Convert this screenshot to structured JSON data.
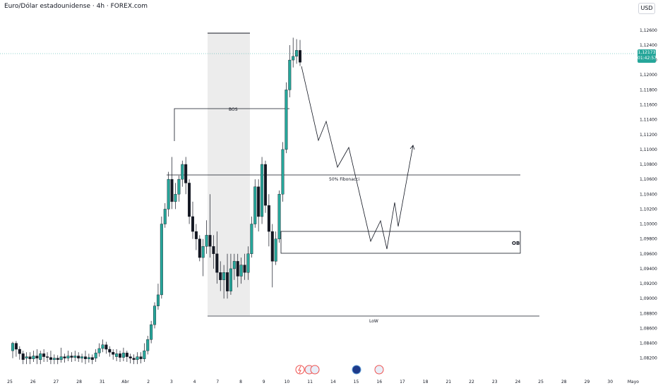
{
  "header": {
    "title": "Euro/Dólar estadounidense · 4h · FOREX.com",
    "currency": "USD"
  },
  "last_price": {
    "value": "1,12173",
    "countdown": "01:42:57"
  },
  "colors": {
    "up": "#26a69a",
    "down": "#131722",
    "price_line": "#26a69a",
    "shade": "#d9d9d9"
  },
  "chart_data": {
    "type": "candlestick",
    "y_ticks": [
      "1,12600",
      "1,12400",
      "1,12200",
      "1,12000",
      "1,11800",
      "1,11600",
      "1,11400",
      "1,11200",
      "1,11000",
      "1,10800",
      "1,10600",
      "1,10400",
      "1,10200",
      "1,10000",
      "1,09800",
      "1,09600",
      "1,09400",
      "1,09200",
      "1,09000",
      "1,08800",
      "1,08600",
      "1,08400",
      "1,08200"
    ],
    "ylim": [
      1.0815,
      1.1275
    ],
    "x_ticks": [
      "25",
      "26",
      "27",
      "28",
      "31",
      "Abr",
      "2",
      "3",
      "4",
      "7",
      "8",
      "9",
      "10",
      "11",
      "14",
      "15",
      "16",
      "17",
      "18",
      "21",
      "22",
      "23",
      "24",
      "25",
      "28",
      "29",
      "30",
      "Mayo"
    ],
    "candles": [
      [
        1.083,
        1.084,
        1.082,
        1.0842
      ],
      [
        1.084,
        1.0832,
        1.0822,
        1.0843
      ],
      [
        1.0832,
        1.0826,
        1.0818,
        1.0836
      ],
      [
        1.0826,
        1.0818,
        1.0812,
        1.083
      ],
      [
        1.082,
        1.0822,
        1.0812,
        1.0828
      ],
      [
        1.0822,
        1.0819,
        1.0812,
        1.0828
      ],
      [
        1.0819,
        1.0823,
        1.0815,
        1.083
      ],
      [
        1.0823,
        1.082,
        1.0812,
        1.0832
      ],
      [
        1.0818,
        1.0826,
        1.0812,
        1.083
      ],
      [
        1.0826,
        1.0822,
        1.0815,
        1.0832
      ],
      [
        1.0822,
        1.0821,
        1.0815,
        1.0828
      ],
      [
        1.0821,
        1.0818,
        1.0812,
        1.083
      ],
      [
        1.0818,
        1.082,
        1.0812,
        1.0825
      ],
      [
        1.082,
        1.0818,
        1.0812,
        1.0824
      ],
      [
        1.0818,
        1.0822,
        1.0814,
        1.0834
      ],
      [
        1.0822,
        1.082,
        1.0814,
        1.0826
      ],
      [
        1.082,
        1.0823,
        1.0816,
        1.083
      ],
      [
        1.0823,
        1.0821,
        1.0815,
        1.0828
      ],
      [
        1.0821,
        1.0823,
        1.0816,
        1.083
      ],
      [
        1.0823,
        1.082,
        1.0815,
        1.0828
      ],
      [
        1.082,
        1.0822,
        1.0814,
        1.0826
      ],
      [
        1.0822,
        1.0819,
        1.0812,
        1.083
      ],
      [
        1.0819,
        1.0821,
        1.0814,
        1.0826
      ],
      [
        1.0821,
        1.0818,
        1.0812,
        1.0825
      ],
      [
        1.082,
        1.0827,
        1.0815,
        1.0832
      ],
      [
        1.0827,
        1.0833,
        1.0822,
        1.084
      ],
      [
        1.0833,
        1.0838,
        1.0828,
        1.0845
      ],
      [
        1.0838,
        1.0832,
        1.0826,
        1.0842
      ],
      [
        1.0832,
        1.0828,
        1.0822,
        1.0836
      ],
      [
        1.0828,
        1.0825,
        1.0818,
        1.0832
      ],
      [
        1.0822,
        1.0826,
        1.0816,
        1.0832
      ],
      [
        1.0826,
        1.0821,
        1.0815,
        1.083
      ],
      [
        1.0821,
        1.0827,
        1.0816,
        1.0834
      ],
      [
        1.0827,
        1.0822,
        1.0815,
        1.083
      ],
      [
        1.0822,
        1.082,
        1.0813,
        1.0826
      ],
      [
        1.082,
        1.0818,
        1.0812,
        1.0825
      ],
      [
        1.0818,
        1.0822,
        1.0812,
        1.0828
      ],
      [
        1.0822,
        1.0819,
        1.0813,
        1.0828
      ],
      [
        1.0819,
        1.083,
        1.0815,
        1.084
      ],
      [
        1.083,
        1.0845,
        1.0825,
        1.085
      ],
      [
        1.0845,
        1.0865,
        1.084,
        1.087
      ],
      [
        1.0865,
        1.089,
        1.086,
        1.0895
      ],
      [
        1.089,
        1.0905,
        1.0885,
        1.092
      ],
      [
        1.0905,
        1.1,
        1.09,
        1.101
      ],
      [
        1.1,
        1.102,
        1.0995,
        1.1028
      ],
      [
        1.102,
        1.106,
        1.101,
        1.107
      ],
      [
        1.106,
        1.103,
        1.102,
        1.109
      ],
      [
        1.103,
        1.104,
        1.102,
        1.1055
      ],
      [
        1.104,
        1.106,
        1.103,
        1.1065
      ],
      [
        1.106,
        1.108,
        1.105,
        1.1085
      ],
      [
        1.108,
        1.1055,
        1.104,
        1.109
      ],
      [
        1.1055,
        1.101,
        1.1,
        1.106
      ],
      [
        1.101,
        1.099,
        1.098,
        1.103
      ],
      [
        1.099,
        1.098,
        1.0965,
        1.1
      ],
      [
        1.098,
        1.0955,
        1.095,
        1.0985
      ],
      [
        1.0955,
        1.097,
        1.093,
        1.098
      ],
      [
        1.097,
        1.0985,
        1.096,
        1.1005
      ],
      [
        1.0985,
        1.097,
        1.0955,
        1.104
      ],
      [
        1.097,
        1.096,
        1.094,
        1.0985
      ],
      [
        1.096,
        1.0935,
        1.092,
        1.099
      ],
      [
        1.0935,
        1.0925,
        1.091,
        1.095
      ],
      [
        1.0925,
        1.0935,
        1.09,
        1.0945
      ],
      [
        1.0935,
        1.091,
        1.09,
        1.096
      ],
      [
        1.091,
        1.094,
        1.0905,
        1.096
      ],
      [
        1.094,
        1.095,
        1.0925,
        1.096
      ],
      [
        1.095,
        1.093,
        1.0915,
        1.096
      ],
      [
        1.093,
        1.0945,
        1.092,
        1.0955
      ],
      [
        1.0945,
        1.0935,
        1.0925,
        1.096
      ],
      [
        1.0935,
        1.096,
        1.0925,
        1.097
      ],
      [
        1.096,
        1.1,
        1.0955,
        1.101
      ],
      [
        1.1,
        1.105,
        1.0995,
        1.106
      ],
      [
        1.105,
        1.101,
        1.099,
        1.106
      ],
      [
        1.101,
        1.108,
        1.1,
        1.109
      ],
      [
        1.108,
        1.1025,
        1.1015,
        1.1085
      ],
      [
        1.1025,
        1.099,
        1.097,
        1.104
      ],
      [
        1.099,
        1.095,
        1.0915,
        1.1
      ],
      [
        1.095,
        1.098,
        1.0945,
        1.099
      ],
      [
        1.098,
        1.104,
        1.0975,
        1.1045
      ],
      [
        1.104,
        1.11,
        1.103,
        1.111
      ],
      [
        1.11,
        1.118,
        1.1095,
        1.119
      ],
      [
        1.118,
        1.122,
        1.117,
        1.124
      ],
      [
        1.122,
        1.1225,
        1.121,
        1.125
      ],
      [
        1.1225,
        1.1233,
        1.1215,
        1.1248
      ],
      [
        1.1233,
        1.1217,
        1.1212,
        1.1247
      ]
    ],
    "annotations": {
      "bos": "BOS",
      "fib": "50% Fibonacci",
      "ob": "OB",
      "low": "LoW"
    }
  }
}
